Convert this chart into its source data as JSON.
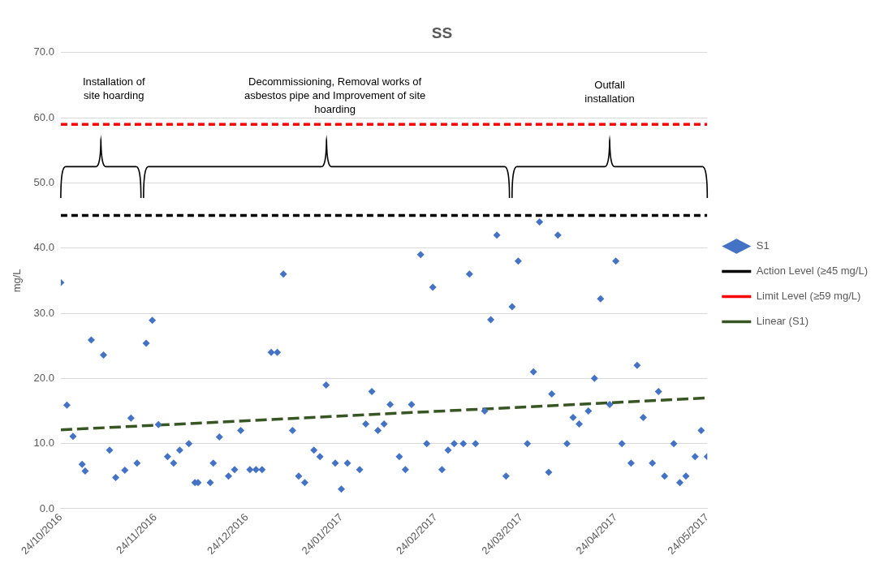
{
  "chart_data": {
    "type": "scatter",
    "title": "SS",
    "ylabel": "mg/L",
    "xlim": [
      "2016-10-24",
      "2017-05-24"
    ],
    "xticks": [
      {
        "value": "2016-10-24",
        "label": "24/10/2016"
      },
      {
        "value": "2016-11-24",
        "label": "24/11/2016"
      },
      {
        "value": "2016-12-24",
        "label": "24/12/2016"
      },
      {
        "value": "2017-01-24",
        "label": "24/01/2017"
      },
      {
        "value": "2017-02-24",
        "label": "24/02/2017"
      },
      {
        "value": "2017-03-24",
        "label": "24/03/2017"
      },
      {
        "value": "2017-04-24",
        "label": "24/04/2017"
      },
      {
        "value": "2017-05-24",
        "label": "24/05/2017"
      }
    ],
    "ylim": [
      0,
      70
    ],
    "yticks": [
      {
        "value": 0,
        "label": "0.0"
      },
      {
        "value": 10,
        "label": "10.0"
      },
      {
        "value": 20,
        "label": "20.0"
      },
      {
        "value": 30,
        "label": "30.0"
      },
      {
        "value": 40,
        "label": "40.0"
      },
      {
        "value": 50,
        "label": "50.0"
      },
      {
        "value": 60,
        "label": "60.0"
      },
      {
        "value": 70,
        "label": "70.0"
      }
    ],
    "grid": "y",
    "legend": "right",
    "series": [
      {
        "name": "S1",
        "color": "#4472c4",
        "marker": "diamond",
        "x": [
          "2016-10-24",
          "2016-10-26",
          "2016-10-28",
          "2016-10-31",
          "2016-11-01",
          "2016-11-03",
          "2016-11-07",
          "2016-11-09",
          "2016-11-11",
          "2016-11-14",
          "2016-11-16",
          "2016-11-18",
          "2016-11-21",
          "2016-11-23",
          "2016-11-25",
          "2016-11-28",
          "2016-11-30",
          "2016-12-02",
          "2016-12-05",
          "2016-12-07",
          "2016-12-08",
          "2016-12-12",
          "2016-12-13",
          "2016-12-15",
          "2016-12-18",
          "2016-12-20",
          "2016-12-22",
          "2016-12-25",
          "2016-12-27",
          "2016-12-29",
          "2017-01-01",
          "2017-01-03",
          "2017-01-05",
          "2017-01-08",
          "2017-01-10",
          "2017-01-12",
          "2017-01-15",
          "2017-01-17",
          "2017-01-19",
          "2017-01-22",
          "2017-01-24",
          "2017-01-26",
          "2017-01-30",
          "2017-02-01",
          "2017-02-03",
          "2017-02-05",
          "2017-02-07",
          "2017-02-09",
          "2017-02-12",
          "2017-02-14",
          "2017-02-16",
          "2017-02-19",
          "2017-02-21",
          "2017-02-23",
          "2017-02-26",
          "2017-02-28",
          "2017-03-02",
          "2017-03-05",
          "2017-03-07",
          "2017-03-09",
          "2017-03-12",
          "2017-03-14",
          "2017-03-16",
          "2017-03-19",
          "2017-03-21",
          "2017-03-23",
          "2017-03-26",
          "2017-03-28",
          "2017-03-30",
          "2017-04-02",
          "2017-04-03",
          "2017-04-05",
          "2017-04-08",
          "2017-04-10",
          "2017-04-12",
          "2017-04-15",
          "2017-04-17",
          "2017-04-19",
          "2017-04-22",
          "2017-04-24",
          "2017-04-26",
          "2017-04-29",
          "2017-05-01",
          "2017-05-03",
          "2017-05-06",
          "2017-05-08",
          "2017-05-10",
          "2017-05-13",
          "2017-05-15",
          "2017-05-17",
          "2017-05-20",
          "2017-05-22",
          "2017-05-24"
        ],
        "values": [
          34.7,
          15.9,
          11.1,
          6.8,
          5.8,
          25.9,
          23.6,
          9.0,
          4.8,
          5.9,
          13.9,
          7.0,
          25.4,
          28.9,
          12.9,
          8.0,
          7.0,
          9.0,
          10.0,
          4.0,
          4.0,
          4.0,
          7.0,
          11.0,
          5.0,
          6.0,
          12.0,
          6.0,
          6.0,
          6.0,
          24.0,
          24.0,
          36.0,
          12.0,
          5.0,
          4.0,
          9.0,
          8.0,
          19.0,
          7.0,
          3.0,
          7.0,
          6.0,
          13.0,
          18.0,
          12.0,
          13.0,
          16.0,
          8.0,
          6.0,
          16.0,
          39.0,
          10.0,
          34.0,
          6.0,
          9.0,
          10.0,
          10.0,
          36.0,
          10.0,
          15.0,
          29.0,
          42.0,
          5.0,
          31.0,
          38.0,
          10.0,
          21.0,
          44.0,
          5.6,
          17.6,
          42.0,
          10.0,
          14.0,
          13.0,
          15.0,
          20.0,
          32.2,
          16.0,
          38.0,
          10.0,
          7.0,
          22.0,
          14.0,
          7.0,
          18.0,
          5.0,
          10.0,
          4.0,
          5.0,
          8.0,
          12.0,
          8.0
        ]
      },
      {
        "name": "Action Level (≥45 mg/L)",
        "type": "line",
        "color": "#000000",
        "line_style": "dashed",
        "marker": "none",
        "x": [
          "2016-10-24",
          "2017-05-24"
        ],
        "values": [
          45,
          45
        ]
      },
      {
        "name": "Limit Level (≥59 mg/L)",
        "type": "line",
        "color": "#ff0000",
        "line_style": "dashed",
        "marker": "none",
        "x": [
          "2016-10-24",
          "2017-05-24"
        ],
        "values": [
          59,
          59
        ]
      },
      {
        "name": "Linear (S1)",
        "type": "line",
        "color": "#375623",
        "line_style": "dashed",
        "marker": "none",
        "x": [
          "2016-10-24",
          "2017-05-24"
        ],
        "values": [
          12.1,
          17.0
        ]
      }
    ],
    "annotations": [
      "Installation of site hoarding",
      "Decommissioning, Removal works of asbestos pipe and Improvement of site hoarding",
      "Outfall installation"
    ]
  }
}
